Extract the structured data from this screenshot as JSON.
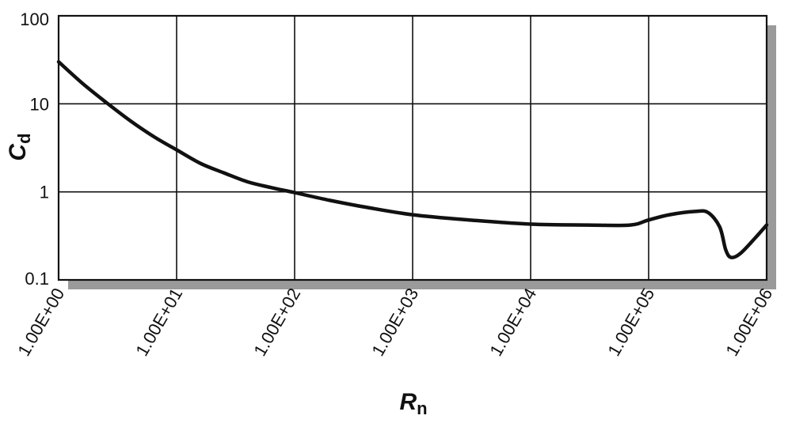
{
  "chart_data": {
    "type": "line",
    "title": "",
    "xlabel": {
      "main": "R",
      "sub": "n"
    },
    "ylabel": {
      "main": "C",
      "sub": "d"
    },
    "x_scale": "log",
    "y_scale": "log",
    "xlim": [
      1,
      1000000
    ],
    "ylim": [
      0.1,
      100
    ],
    "grid": true,
    "x_ticks": [
      {
        "value": 1,
        "label": "1.00E+00"
      },
      {
        "value": 10,
        "label": "1.00E+01"
      },
      {
        "value": 100,
        "label": "1.00E+02"
      },
      {
        "value": 1000,
        "label": "1.00E+03"
      },
      {
        "value": 10000,
        "label": "1.00E+04"
      },
      {
        "value": 100000,
        "label": "1.00E+05"
      },
      {
        "value": 1000000,
        "label": "1.00E+06"
      }
    ],
    "y_ticks": [
      {
        "value": 100,
        "label": "100"
      },
      {
        "value": 10,
        "label": "10"
      },
      {
        "value": 1,
        "label": "1"
      },
      {
        "value": 0.1,
        "label": "0.1"
      }
    ],
    "series": [
      {
        "color": "#111111",
        "points": [
          [
            1,
            30
          ],
          [
            1.6,
            17
          ],
          [
            2.5,
            10.5
          ],
          [
            4,
            6.5
          ],
          [
            6.3,
            4.3
          ],
          [
            10,
            3.0
          ],
          [
            16,
            2.1
          ],
          [
            25,
            1.65
          ],
          [
            40,
            1.3
          ],
          [
            63,
            1.12
          ],
          [
            100,
            0.98
          ],
          [
            200,
            0.8
          ],
          [
            400,
            0.67
          ],
          [
            1000,
            0.55
          ],
          [
            3000,
            0.48
          ],
          [
            10000,
            0.43
          ],
          [
            30000,
            0.42
          ],
          [
            70000,
            0.42
          ],
          [
            100000,
            0.48
          ],
          [
            150000,
            0.55
          ],
          [
            250000,
            0.6
          ],
          [
            320000,
            0.58
          ],
          [
            400000,
            0.4
          ],
          [
            450000,
            0.22
          ],
          [
            500000,
            0.18
          ],
          [
            600000,
            0.2
          ],
          [
            800000,
            0.3
          ],
          [
            1000000,
            0.42
          ]
        ]
      }
    ]
  }
}
